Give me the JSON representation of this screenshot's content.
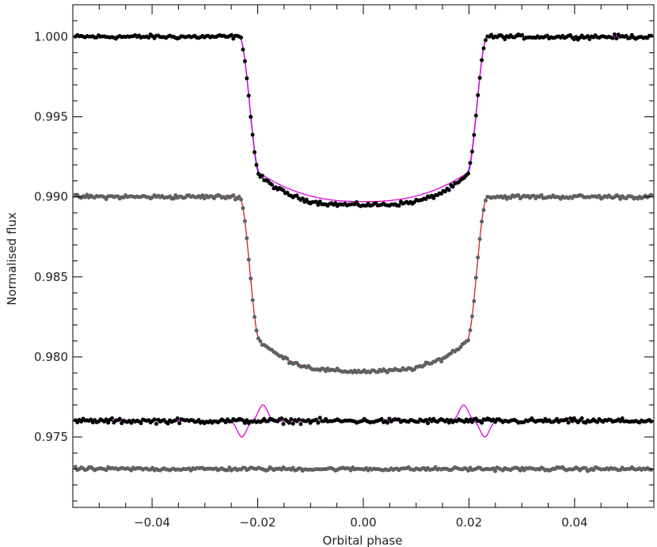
{
  "chart_data": {
    "type": "scatter",
    "title": "",
    "xlabel": "Orbital phase",
    "ylabel": "Normalised flux",
    "xlim": [
      -0.055,
      0.055
    ],
    "ylim": [
      0.9706,
      1.002
    ],
    "grid": false,
    "legend": "none",
    "x_ticks": [
      -0.04,
      -0.02,
      0.0,
      0.02,
      0.04
    ],
    "x_tick_labels": [
      "−0.04",
      "−0.02",
      "0.00",
      "0.02",
      "0.04"
    ],
    "y_ticks": [
      0.975,
      0.98,
      0.985,
      0.99,
      0.995,
      1.0
    ],
    "y_tick_labels": [
      "0.975",
      "0.980",
      "0.985",
      "0.990",
      "0.995",
      "1.000"
    ],
    "series": [
      {
        "kind": "points",
        "color": "#000000",
        "baseline": 1.0,
        "depth": 0.0105,
        "x": [
          -0.054,
          -0.05,
          -0.046,
          -0.042,
          -0.038,
          -0.034,
          -0.03,
          -0.026,
          -0.024,
          -0.023,
          -0.022,
          -0.021,
          -0.02,
          -0.019,
          -0.018,
          -0.017,
          -0.016,
          -0.015,
          -0.014,
          -0.013,
          -0.012,
          -0.011,
          -0.01,
          -0.008,
          -0.006,
          -0.004,
          -0.002,
          0.0,
          0.002,
          0.004,
          0.006,
          0.008,
          0.01,
          0.011,
          0.012,
          0.013,
          0.014,
          0.015,
          0.016,
          0.017,
          0.018,
          0.019,
          0.02,
          0.021,
          0.022,
          0.023,
          0.024,
          0.026,
          0.03,
          0.034,
          0.038,
          0.042,
          0.046,
          0.05,
          0.054
        ],
        "y": [
          1.0,
          1.0,
          1.0,
          1.0,
          1.0,
          1.0,
          1.0,
          1.0,
          0.9997,
          0.9985,
          0.9968,
          0.995,
          0.9935,
          0.9923,
          0.9915,
          0.9909,
          0.9904,
          0.9901,
          0.9898,
          0.9896,
          0.9895,
          0.9894,
          0.9893,
          0.9893,
          0.9893,
          0.9894,
          0.9895,
          0.9895,
          0.9896,
          0.9896,
          0.9897,
          0.9897,
          0.9898,
          0.9899,
          0.99,
          0.9902,
          0.9904,
          0.9908,
          0.9912,
          0.992,
          0.993,
          0.9943,
          0.996,
          0.9978,
          0.9992,
          0.9999,
          1.0,
          1.0,
          1.0,
          1.0,
          1.0,
          1.0,
          1.0,
          1.0,
          1.0
        ]
      },
      {
        "kind": "points",
        "color": "#606060",
        "baseline": 0.99,
        "depth": 0.0109,
        "x": [
          -0.054,
          -0.05,
          -0.046,
          -0.042,
          -0.038,
          -0.034,
          -0.03,
          -0.026,
          -0.024,
          -0.023,
          -0.022,
          -0.021,
          -0.02,
          -0.019,
          -0.018,
          -0.017,
          -0.016,
          -0.015,
          -0.014,
          -0.013,
          -0.012,
          -0.011,
          -0.01,
          -0.008,
          -0.006,
          -0.004,
          -0.002,
          0.0,
          0.002,
          0.004,
          0.006,
          0.008,
          0.01,
          0.011,
          0.012,
          0.013,
          0.014,
          0.015,
          0.016,
          0.017,
          0.018,
          0.019,
          0.02,
          0.021,
          0.022,
          0.023,
          0.024,
          0.026,
          0.03,
          0.034,
          0.038,
          0.042,
          0.046,
          0.05,
          0.054
        ],
        "y": [
          0.99,
          0.99,
          0.99,
          0.99,
          0.99,
          0.99,
          0.99,
          0.99,
          0.9897,
          0.9885,
          0.9865,
          0.9845,
          0.9828,
          0.9815,
          0.9807,
          0.9802,
          0.9799,
          0.9797,
          0.9796,
          0.9795,
          0.9794,
          0.9793,
          0.9793,
          0.9792,
          0.9792,
          0.9792,
          0.9791,
          0.9791,
          0.9792,
          0.9792,
          0.9792,
          0.9793,
          0.9794,
          0.9795,
          0.9796,
          0.9798,
          0.98,
          0.9803,
          0.9808,
          0.9816,
          0.9828,
          0.9845,
          0.9865,
          0.9883,
          0.9896,
          0.99,
          0.99,
          0.99,
          0.99,
          0.99,
          0.99,
          0.99,
          0.99,
          0.99,
          0.99
        ]
      },
      {
        "kind": "points",
        "color": "#000000",
        "baseline": 0.976,
        "scatter": 0.00017
      },
      {
        "kind": "points",
        "color": "#606060",
        "baseline": 0.973,
        "scatter": 0.00012
      },
      {
        "kind": "line",
        "color": "#1a1acc",
        "baseline": 1.0,
        "depth": 0.0105,
        "limb": 0.55
      },
      {
        "kind": "line",
        "color": "#dd00dd",
        "baseline": 1.0,
        "depth": 0.0103,
        "limb": 0.2
      },
      {
        "kind": "line",
        "color": "#cc2222",
        "baseline": 0.99,
        "depth": 0.0109,
        "limb": 0.55
      },
      {
        "kind": "line",
        "color": "#1a1acc",
        "baseline": 0.976,
        "residual": 0.0
      },
      {
        "kind": "line",
        "color": "#dd00dd",
        "baseline": 0.976,
        "residual": 0.001
      },
      {
        "kind": "line",
        "color": "#cc2222",
        "baseline": 0.973,
        "residual": 0.0
      }
    ]
  }
}
